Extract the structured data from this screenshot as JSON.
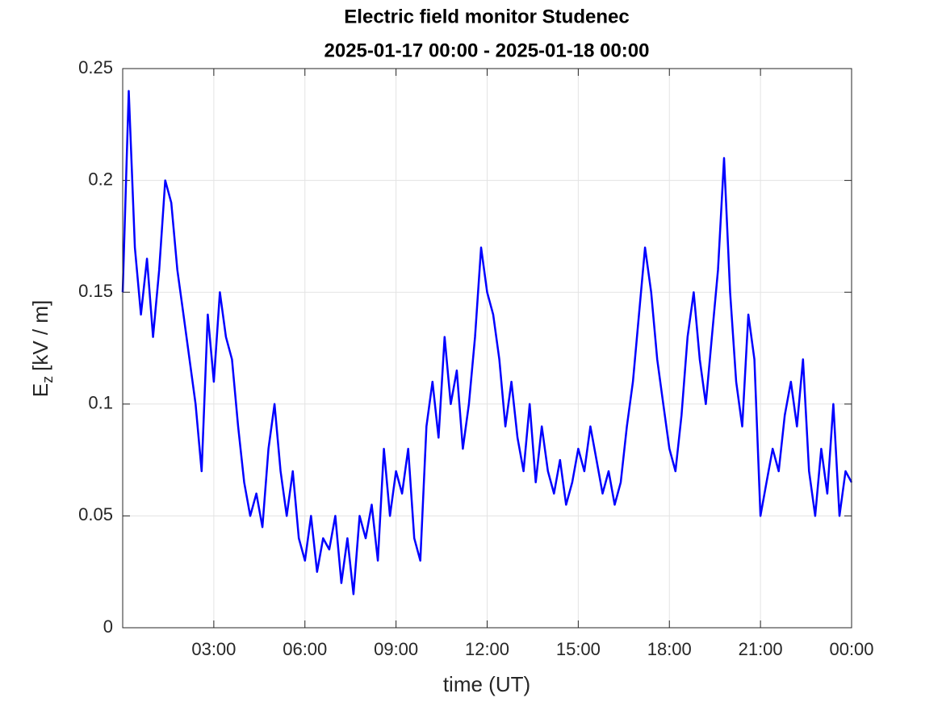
{
  "chart_data": {
    "type": "line",
    "title": "Electric field monitor Studenec",
    "subtitle": "2025-01-17 00:00 - 2025-01-18 00:00",
    "xlabel": "time (UT)",
    "ylabel": {
      "main": "E",
      "sub": "z",
      "rest": "[kV / m]"
    },
    "x": [
      0,
      0.2,
      0.4,
      0.6,
      0.8,
      1,
      1.2,
      1.4,
      1.6,
      1.8,
      2,
      2.2,
      2.4,
      2.6,
      2.8,
      3,
      3.2,
      3.4,
      3.6,
      3.8,
      4,
      4.2,
      4.4,
      4.6,
      4.8,
      5,
      5.2,
      5.4,
      5.6,
      5.8,
      6,
      6.2,
      6.4,
      6.6,
      6.8,
      7,
      7.2,
      7.4,
      7.6,
      7.8,
      8,
      8.2,
      8.4,
      8.6,
      8.8,
      9,
      9.2,
      9.4,
      9.6,
      9.8,
      10,
      10.2,
      10.4,
      10.6,
      10.8,
      11,
      11.2,
      11.4,
      11.6,
      11.8,
      12,
      12.2,
      12.4,
      12.6,
      12.8,
      13,
      13.2,
      13.4,
      13.6,
      13.8,
      14,
      14.2,
      14.4,
      14.6,
      14.8,
      15,
      15.2,
      15.4,
      15.6,
      15.8,
      16,
      16.2,
      16.4,
      16.6,
      16.8,
      17,
      17.2,
      17.4,
      17.6,
      17.8,
      18,
      18.2,
      18.4,
      18.6,
      18.8,
      19,
      19.2,
      19.4,
      19.6,
      19.8,
      20,
      20.2,
      20.4,
      20.6,
      20.8,
      21,
      21.2,
      21.4,
      21.6,
      21.8,
      22,
      22.2,
      22.4,
      22.6,
      22.8,
      23,
      23.2,
      23.4,
      23.6,
      23.8,
      24
    ],
    "series": [
      {
        "name": "Ez",
        "color": "#0000ff",
        "values": [
          0.15,
          0.24,
          0.17,
          0.14,
          0.165,
          0.13,
          0.16,
          0.2,
          0.19,
          0.16,
          0.14,
          0.12,
          0.1,
          0.07,
          0.14,
          0.11,
          0.15,
          0.13,
          0.12,
          0.09,
          0.065,
          0.05,
          0.06,
          0.045,
          0.08,
          0.1,
          0.07,
          0.05,
          0.07,
          0.04,
          0.03,
          0.05,
          0.025,
          0.04,
          0.035,
          0.05,
          0.02,
          0.04,
          0.015,
          0.05,
          0.04,
          0.055,
          0.03,
          0.08,
          0.05,
          0.07,
          0.06,
          0.08,
          0.04,
          0.03,
          0.09,
          0.11,
          0.085,
          0.13,
          0.1,
          0.115,
          0.08,
          0.1,
          0.13,
          0.17,
          0.15,
          0.14,
          0.12,
          0.09,
          0.11,
          0.085,
          0.07,
          0.1,
          0.065,
          0.09,
          0.07,
          0.06,
          0.075,
          0.055,
          0.065,
          0.08,
          0.07,
          0.09,
          0.075,
          0.06,
          0.07,
          0.055,
          0.065,
          0.09,
          0.11,
          0.14,
          0.17,
          0.15,
          0.12,
          0.1,
          0.08,
          0.07,
          0.095,
          0.13,
          0.15,
          0.12,
          0.1,
          0.13,
          0.16,
          0.21,
          0.15,
          0.11,
          0.09,
          0.14,
          0.12,
          0.05,
          0.065,
          0.08,
          0.07,
          0.095,
          0.11,
          0.09,
          0.12,
          0.07,
          0.05,
          0.08,
          0.06,
          0.1,
          0.05,
          0.07,
          0.065
        ]
      }
    ],
    "xlim": [
      0,
      24
    ],
    "xticks": [
      {
        "value": 3,
        "label": "03:00"
      },
      {
        "value": 6,
        "label": "06:00"
      },
      {
        "value": 9,
        "label": "09:00"
      },
      {
        "value": 12,
        "label": "12:00"
      },
      {
        "value": 15,
        "label": "15:00"
      },
      {
        "value": 18,
        "label": "18:00"
      },
      {
        "value": 21,
        "label": "21:00"
      },
      {
        "value": 24,
        "label": "00:00"
      }
    ],
    "ylim": [
      0,
      0.25
    ],
    "yticks": [
      0,
      0.05,
      0.1,
      0.15,
      0.2,
      0.25
    ],
    "grid": true
  }
}
